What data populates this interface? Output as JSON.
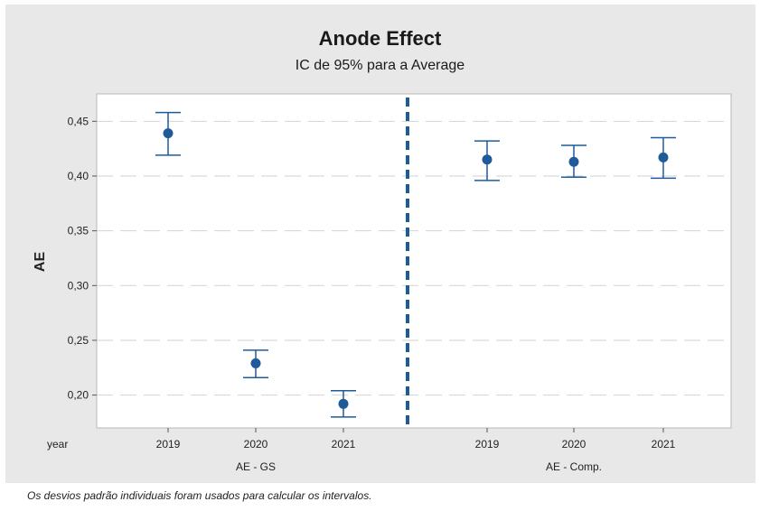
{
  "chart_data": {
    "type": "scatter",
    "title": "Anode Effect",
    "subtitle": "IC de 95% para a Average",
    "ylabel": "AE",
    "x_axis_label": "year",
    "ylim": [
      0.17,
      0.475
    ],
    "yticks": [
      0.45,
      0.4,
      0.35,
      0.3,
      0.25,
      0.2
    ],
    "ytick_labels": [
      "0,45",
      "0,40",
      "0,35",
      "0,30",
      "0,25",
      "0,20"
    ],
    "grid": "horizontal-dashed",
    "marker_color": "#1f5b99",
    "divider_color": "#1f5b99",
    "groups": [
      {
        "label": "AE - GS",
        "points": [
          {
            "x": "2019",
            "mean": 0.439,
            "lower": 0.419,
            "upper": 0.458
          },
          {
            "x": "2020",
            "mean": 0.229,
            "lower": 0.216,
            "upper": 0.241
          },
          {
            "x": "2021",
            "mean": 0.192,
            "lower": 0.18,
            "upper": 0.204
          }
        ]
      },
      {
        "label": "AE - Comp.",
        "points": [
          {
            "x": "2019",
            "mean": 0.415,
            "lower": 0.396,
            "upper": 0.432
          },
          {
            "x": "2020",
            "mean": 0.413,
            "lower": 0.399,
            "upper": 0.428
          },
          {
            "x": "2021",
            "mean": 0.417,
            "lower": 0.398,
            "upper": 0.435
          }
        ]
      }
    ]
  },
  "footnote": "Os desvios padrão individuais foram usados para calcular os intervalos."
}
